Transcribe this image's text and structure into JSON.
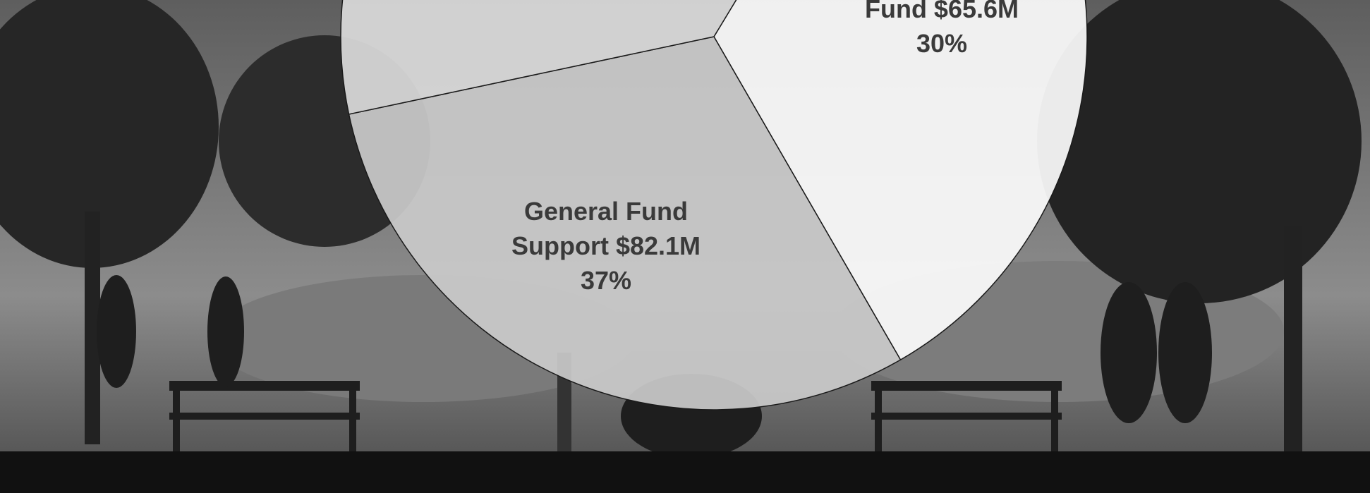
{
  "chart_data": {
    "type": "pie",
    "categories": [
      null,
      "Fund $65.6M",
      "General Fund Support $82.1M"
    ],
    "values": [
      33,
      30,
      37
    ],
    "value_labels": [
      null,
      "30%",
      "37%"
    ],
    "colors": [
      "#fbfbfb",
      "#c9c9c9",
      "#d9d9d9"
    ]
  }
}
